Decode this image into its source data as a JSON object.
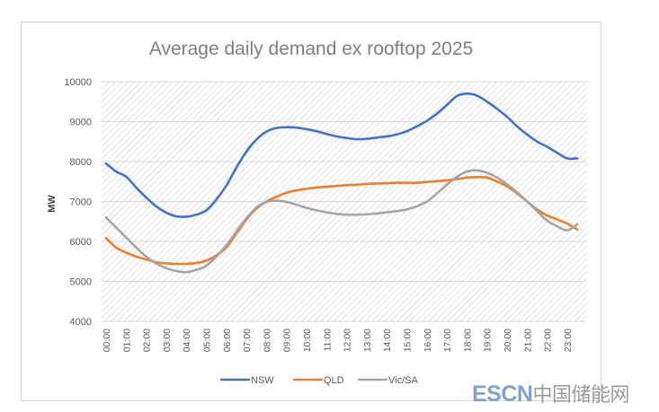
{
  "chart_data": {
    "type": "line",
    "title": "Average daily demand ex rooftop  2025",
    "xlabel": "",
    "ylabel": "MW",
    "ylim": [
      4000,
      10000
    ],
    "yticks": [
      4000,
      5000,
      6000,
      7000,
      8000,
      9000,
      10000
    ],
    "ytick_labels": [
      "4000",
      "5000",
      "6000",
      "7000",
      "8000",
      "9000",
      "10000"
    ],
    "xtick_labels": [
      "00:00",
      "01:00",
      "02:00",
      "03:00",
      "04:00",
      "05:00",
      "06:00",
      "07:00",
      "08:00",
      "09:00",
      "10:00",
      "11:00",
      "12:00",
      "13:00",
      "14:00",
      "15:00",
      "16:00",
      "17:00",
      "18:00",
      "19:00",
      "20:00",
      "21:00",
      "22:00",
      "23:00"
    ],
    "x_hours": [
      0,
      0.5,
      1,
      1.5,
      2,
      2.5,
      3,
      3.5,
      4,
      4.5,
      5,
      5.5,
      6,
      6.5,
      7,
      7.5,
      8,
      8.5,
      9,
      9.5,
      10,
      10.5,
      11,
      11.5,
      12,
      12.5,
      13,
      13.5,
      14,
      14.5,
      15,
      15.5,
      16,
      16.5,
      17,
      17.5,
      18,
      18.5,
      19,
      19.5,
      20,
      20.5,
      21,
      21.5,
      22,
      22.5,
      23,
      23.5
    ],
    "grid": true,
    "background_pattern": "diagonal-hatch",
    "legend_position": "bottom",
    "series": [
      {
        "name": "NSW",
        "color": "#4472c4",
        "values": [
          7950,
          7750,
          7620,
          7350,
          7100,
          6880,
          6720,
          6630,
          6620,
          6670,
          6780,
          7050,
          7400,
          7850,
          8250,
          8550,
          8750,
          8840,
          8860,
          8850,
          8810,
          8760,
          8690,
          8630,
          8590,
          8560,
          8570,
          8600,
          8630,
          8680,
          8760,
          8880,
          9020,
          9200,
          9420,
          9640,
          9700,
          9650,
          9500,
          9320,
          9120,
          8880,
          8680,
          8500,
          8370,
          8220,
          8080,
          8080
        ]
      },
      {
        "name": "QLD",
        "color": "#ed7d31",
        "values": [
          6080,
          5850,
          5720,
          5620,
          5550,
          5480,
          5450,
          5440,
          5440,
          5460,
          5520,
          5650,
          5850,
          6200,
          6550,
          6820,
          7000,
          7120,
          7220,
          7280,
          7320,
          7350,
          7370,
          7390,
          7410,
          7420,
          7440,
          7450,
          7460,
          7470,
          7470,
          7470,
          7490,
          7510,
          7530,
          7560,
          7600,
          7610,
          7600,
          7500,
          7380,
          7200,
          7000,
          6800,
          6650,
          6550,
          6450,
          6300
        ]
      },
      {
        "name": "Vic/SA",
        "color": "#a5a5a5",
        "values": [
          6600,
          6350,
          6100,
          5850,
          5620,
          5450,
          5330,
          5260,
          5230,
          5290,
          5390,
          5620,
          5900,
          6250,
          6580,
          6850,
          6990,
          7020,
          6990,
          6920,
          6840,
          6780,
          6730,
          6690,
          6670,
          6670,
          6680,
          6700,
          6730,
          6760,
          6800,
          6880,
          7000,
          7200,
          7420,
          7620,
          7750,
          7780,
          7720,
          7600,
          7430,
          7230,
          7000,
          6760,
          6520,
          6380,
          6280,
          6430
        ]
      }
    ]
  },
  "watermark": {
    "latin": "ESCN",
    "chinese": "中国储能网"
  }
}
